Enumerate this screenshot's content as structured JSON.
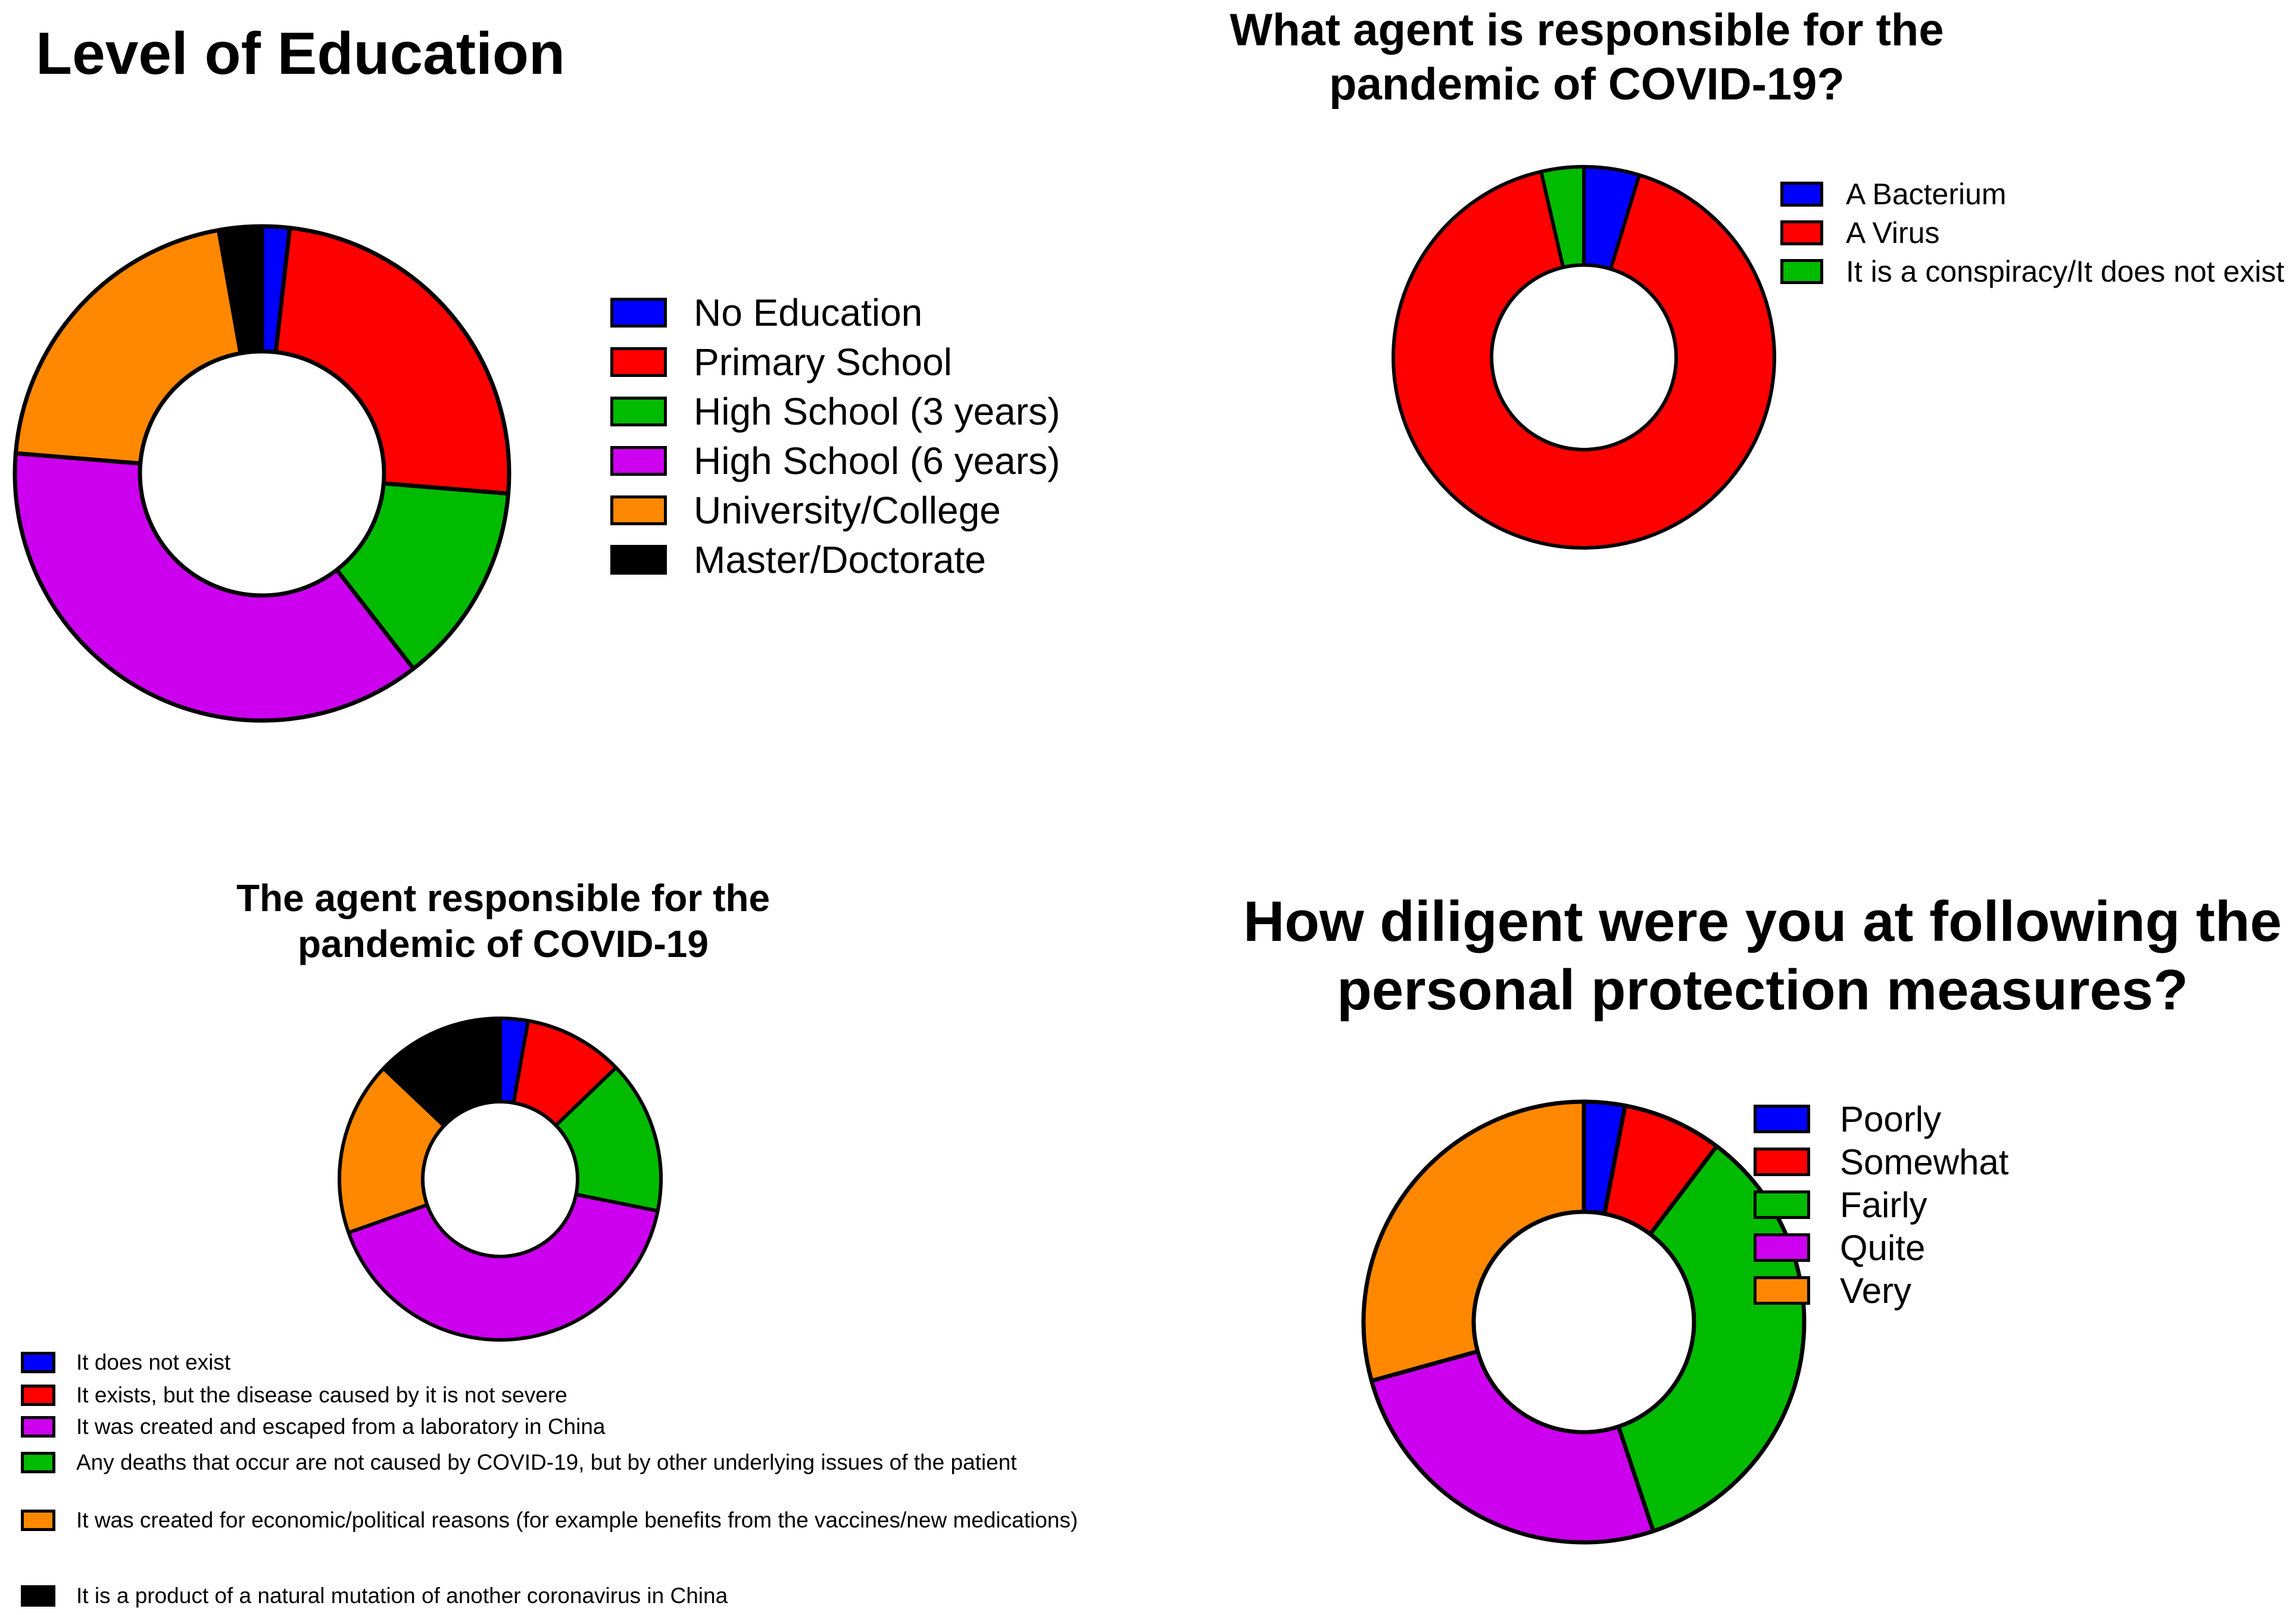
{
  "chart_data": [
    {
      "type": "pie",
      "title": "Level of Education",
      "categories": [
        "No Education",
        "Primary School",
        "High School (3 years)",
        "High School (6 years)",
        "University/College",
        "Master/Doctorate"
      ],
      "values": [
        1.8,
        24.5,
        13.2,
        36.8,
        20.9,
        2.8
      ],
      "colors": [
        "#0000ff",
        "#ff0000",
        "#00bb00",
        "#cc00ee",
        "#ff8800",
        "#000000"
      ],
      "legend_position": "right"
    },
    {
      "type": "pie",
      "title": "What agent is responsible for the pandemic of COVID-19?",
      "categories": [
        "A Bacterium",
        "A Virus",
        "It is a conspiracy/It does not exist"
      ],
      "values": [
        4.7,
        91.7,
        3.6
      ],
      "colors": [
        "#0000ff",
        "#ff0000",
        "#00bb00"
      ],
      "legend_position": "right"
    },
    {
      "type": "pie",
      "title": "The agent responsible for the pandemic of COVID-19",
      "categories": [
        "It does not exist",
        "It exists, but the disease caused by it is not severe",
        "It was created and escaped from a laboratory in China",
        "Any deaths that occur are not caused by COVID-19, but by other underlying issues of the patient",
        "It was created for economic/political reasons (for example benefits from the vaccines/new medications)",
        "It is a product of a natural mutation of another coronavirus in China"
      ],
      "values": [
        2.5,
        9.0,
        37.2,
        13.8,
        15.7,
        11.6
      ],
      "slice_order": [
        0,
        1,
        3,
        2,
        4,
        5
      ],
      "colors": [
        "#0000ff",
        "#ff0000",
        "#cc00ee",
        "#00bb00",
        "#ff8800",
        "#000000"
      ],
      "legend_position": "bottom"
    },
    {
      "type": "pie",
      "title": "How diligent were you at following the personal protection measures?",
      "categories": [
        "Poorly",
        "Somewhat",
        "Fairly",
        "Quite",
        "Very"
      ],
      "values": [
        3.0,
        7.3,
        34.6,
        25.8,
        29.3
      ],
      "colors": [
        "#0000ff",
        "#ff0000",
        "#00bb00",
        "#cc00ee",
        "#ff8800"
      ],
      "legend_position": "right"
    }
  ]
}
